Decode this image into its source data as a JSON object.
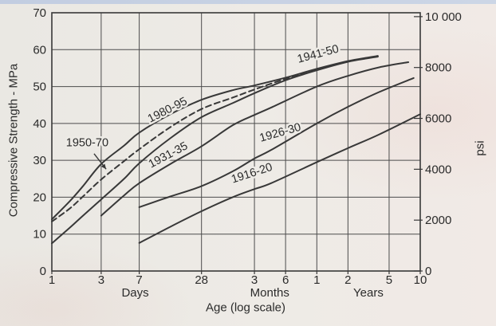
{
  "page": {
    "description": "Scanned textbook figure: concrete compressive strength versus age for cements of different eras",
    "ink_color": "#383838",
    "grid_color": "#4c4c4c",
    "text_color": "#2b2b2b",
    "paper_color": "#edebe6"
  },
  "chart_data": {
    "type": "line",
    "title": "",
    "x_axis": {
      "label": "Age (log scale)",
      "scale": "log",
      "unit": "days",
      "range_days": [
        1,
        3650
      ],
      "ticks": [
        {
          "days": 1,
          "label": "1"
        },
        {
          "days": 3,
          "label": "3"
        },
        {
          "days": 7,
          "label": "7"
        },
        {
          "days": 28,
          "label": "28"
        },
        {
          "days": 91,
          "label": "3"
        },
        {
          "days": 182,
          "label": "6"
        },
        {
          "days": 365,
          "label": "1"
        },
        {
          "days": 730,
          "label": "2"
        },
        {
          "days": 1825,
          "label": "5"
        },
        {
          "days": 3650,
          "label": "10"
        }
      ],
      "group_labels": [
        {
          "text": "Days",
          "days": 6.4
        },
        {
          "text": "Months",
          "days": 128
        },
        {
          "text": "Years",
          "days": 1150
        }
      ]
    },
    "y_left": {
      "label": "Compressive Strength - MPa",
      "range": [
        0,
        70
      ],
      "ticks": [
        0,
        10,
        20,
        30,
        40,
        50,
        60,
        70
      ]
    },
    "y_right": {
      "label": "psi",
      "range_psi": [
        0,
        10000
      ],
      "psi_per_mpa": 145.038,
      "ticks": [
        {
          "psi": 0,
          "label": "0"
        },
        {
          "psi": 2000,
          "label": "2000"
        },
        {
          "psi": 4000,
          "label": "4000"
        },
        {
          "psi": 6000,
          "label": "6000"
        },
        {
          "psi": 8000,
          "label": "8000"
        },
        {
          "psi": 10000,
          "label": "10 000"
        }
      ]
    },
    "grid": true,
    "legend_position": "labels-on-curves",
    "series": [
      {
        "name": "1916-20",
        "style": "solid",
        "points": [
          [
            7,
            7.6
          ],
          [
            14,
            12
          ],
          [
            28,
            16.2
          ],
          [
            56,
            20
          ],
          [
            91,
            22.2
          ],
          [
            132,
            23.8
          ],
          [
            365,
            29.5
          ],
          [
            730,
            33.3
          ],
          [
            1460,
            37
          ],
          [
            3650,
            42.5
          ]
        ],
        "label": {
          "text": "1916-20",
          "days": 88,
          "mpa": 25.6,
          "angle": -18
        }
      },
      {
        "name": "1926-30",
        "style": "solid",
        "points": [
          [
            7,
            17.3
          ],
          [
            14,
            20.2
          ],
          [
            28,
            23
          ],
          [
            56,
            27
          ],
          [
            91,
            30.5
          ],
          [
            132,
            32.8
          ],
          [
            365,
            40
          ],
          [
            730,
            44.5
          ],
          [
            1460,
            48.5
          ],
          [
            3150,
            52.3
          ]
        ],
        "label": {
          "text": "1926-30",
          "days": 165,
          "mpa": 36.6,
          "angle": -16
        }
      },
      {
        "name": "1931-35",
        "style": "solid",
        "points": [
          [
            3,
            15
          ],
          [
            5,
            20.5
          ],
          [
            7,
            23.8
          ],
          [
            14,
            29
          ],
          [
            28,
            33.8
          ],
          [
            56,
            39.5
          ],
          [
            91,
            42.3
          ],
          [
            132,
            44.3
          ],
          [
            365,
            50
          ],
          [
            730,
            52.9
          ],
          [
            1460,
            55.2
          ],
          [
            2800,
            56.6
          ]
        ],
        "label": {
          "text": "1931-35",
          "days": 13.8,
          "mpa": 30.6,
          "angle": -28
        }
      },
      {
        "name": "1941-50",
        "style": "solid",
        "points": [
          [
            1,
            7.5
          ],
          [
            1.5,
            11.8
          ],
          [
            2,
            15
          ],
          [
            3,
            19.4
          ],
          [
            5,
            25
          ],
          [
            7,
            29.2
          ],
          [
            14,
            36
          ],
          [
            28,
            41.7
          ],
          [
            56,
            45.5
          ],
          [
            91,
            48.2
          ],
          [
            182,
            51.7
          ],
          [
            365,
            54.4
          ],
          [
            730,
            56.7
          ],
          [
            1100,
            57.6
          ],
          [
            1420,
            58.1
          ]
        ],
        "label": {
          "text": "1941-50",
          "days": 383,
          "mpa": 57.9,
          "angle": -15
        }
      },
      {
        "name": "1980-95",
        "style": "solid",
        "points": [
          [
            1,
            14
          ],
          [
            1.5,
            19
          ],
          [
            2,
            23
          ],
          [
            3,
            29
          ],
          [
            5,
            34
          ],
          [
            7,
            37.5
          ],
          [
            14,
            42.5
          ],
          [
            28,
            46.4
          ],
          [
            56,
            49
          ],
          [
            91,
            50.3
          ],
          [
            182,
            52.4
          ],
          [
            365,
            54.8
          ],
          [
            730,
            56.9
          ],
          [
            1100,
            57.8
          ],
          [
            1420,
            58.3
          ]
        ],
        "label": {
          "text": "1980-95",
          "days": 13.6,
          "mpa": 42.8,
          "angle": -27
        }
      },
      {
        "name": "1950-70",
        "style": "dashed",
        "points": [
          [
            1,
            13.4
          ],
          [
            1.5,
            17
          ],
          [
            2,
            20.2
          ],
          [
            3,
            24.8
          ],
          [
            5,
            29.8
          ],
          [
            7,
            33
          ],
          [
            14,
            39
          ],
          [
            28,
            43.9
          ],
          [
            56,
            47
          ],
          [
            91,
            49.2
          ],
          [
            182,
            52.1
          ],
          [
            365,
            54.6
          ],
          [
            730,
            56.8
          ],
          [
            1100,
            57.7
          ],
          [
            1420,
            58.2
          ]
        ],
        "label": {
          "text": "1950-70",
          "days": 2.2,
          "mpa": 33.8,
          "angle": 0
        },
        "arrow": {
          "from": {
            "days": 2.56,
            "mpa": 31.8
          },
          "to": {
            "days": 3.35,
            "mpa": 27.6
          }
        }
      }
    ]
  }
}
